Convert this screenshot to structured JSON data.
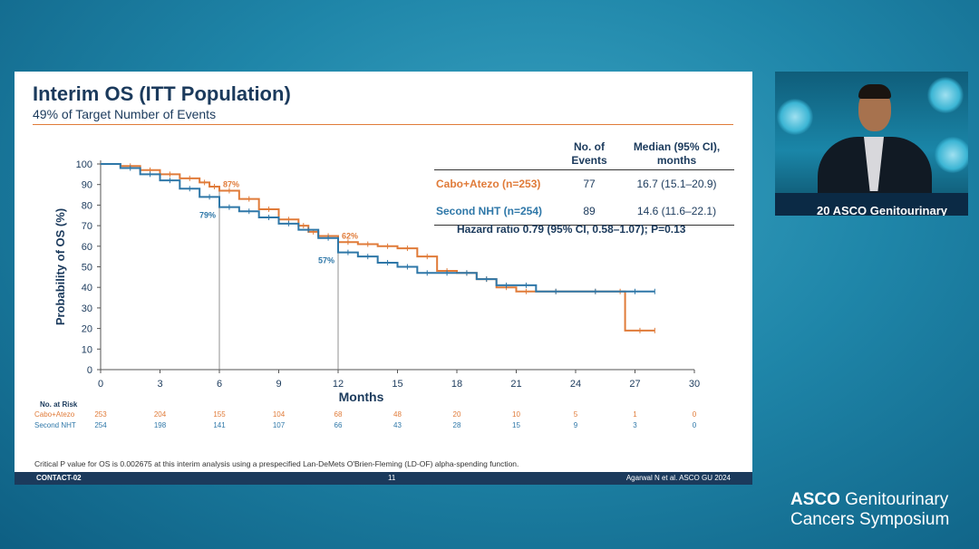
{
  "slide": {
    "title": "Interim OS (ITT Population)",
    "subtitle": "49% of Target Number of Events",
    "footnote": "Critical P value for OS is 0.002675 at this interim analysis using a prespecified Lan-DeMets O'Brien-Fleming (LD-OF) alpha-spending function.",
    "footer": {
      "trial": "CONTACT-02",
      "page": "11",
      "citation": "Agarwal N et al. ASCO GU 2024"
    }
  },
  "stats_table": {
    "headers": [
      "",
      "No. of Events",
      "Median (95% CI), months"
    ],
    "rows": [
      {
        "arm": "Cabo+Atezo (n=253)",
        "events": "77",
        "median": "16.7 (15.1–20.9)"
      },
      {
        "arm": "Second NHT (n=254)",
        "events": "89",
        "median": "14.6 (11.6–22.1)"
      }
    ],
    "hazard": "Hazard ratio 0.79 (95% CI, 0.58–1.07); P=0.13"
  },
  "at_risk": {
    "title": "No. at Risk",
    "rows": [
      {
        "label": "Cabo+Atezo",
        "values": [
          253,
          204,
          155,
          104,
          68,
          48,
          20,
          10,
          5,
          1,
          0
        ]
      },
      {
        "label": "Second NHT",
        "values": [
          254,
          198,
          141,
          107,
          66,
          43,
          28,
          15,
          9,
          3,
          0
        ]
      }
    ]
  },
  "chart_data": {
    "type": "line",
    "step": true,
    "xlabel": "Months",
    "ylabel": "Probability of OS (%)",
    "xlim": [
      0,
      30
    ],
    "ylim": [
      0,
      100
    ],
    "xticks": [
      0,
      3,
      6,
      9,
      12,
      15,
      18,
      21,
      24,
      27,
      30
    ],
    "yticks": [
      0,
      10,
      20,
      30,
      40,
      50,
      60,
      70,
      80,
      90,
      100
    ],
    "grid": false,
    "series": [
      {
        "name": "Cabo+Atezo",
        "color": "#e07b39",
        "x": [
          0,
          1,
          2,
          3,
          4,
          5,
          5.5,
          6,
          7,
          8,
          9,
          10,
          10.5,
          11,
          12,
          13,
          14,
          15,
          16,
          17,
          18,
          19,
          20,
          21,
          22,
          24,
          26,
          26.5,
          28
        ],
        "y": [
          100,
          99,
          97,
          95,
          93,
          91,
          89,
          87,
          83,
          78,
          73,
          70,
          67,
          65,
          62,
          61,
          60,
          59,
          55,
          48,
          47,
          44,
          40,
          38,
          38,
          38,
          38,
          19,
          19
        ]
      },
      {
        "name": "Second NHT",
        "color": "#2e77a8",
        "x": [
          0,
          1,
          2,
          3,
          4,
          5,
          6,
          7,
          8,
          9,
          10,
          11,
          12,
          13,
          14,
          15,
          16,
          17,
          18,
          19,
          20,
          21,
          22,
          24,
          26,
          28
        ],
        "y": [
          100,
          98,
          95,
          92,
          88,
          84,
          79,
          77,
          74,
          71,
          68,
          64,
          57,
          55,
          52,
          50,
          47,
          47,
          47,
          44,
          41,
          41,
          38,
          38,
          38,
          38
        ]
      }
    ],
    "annotations": [
      {
        "label": "87%",
        "series": "Cabo+Atezo",
        "x": 6,
        "y": 87
      },
      {
        "label": "79%",
        "series": "Second NHT",
        "x": 6,
        "y": 79
      },
      {
        "label": "62%",
        "series": "Cabo+Atezo",
        "x": 12,
        "y": 62
      },
      {
        "label": "57%",
        "series": "Second NHT",
        "x": 12,
        "y": 57
      }
    ]
  },
  "video": {
    "podium_text": "20 ASCO Genitourinary"
  },
  "brand": {
    "line1_bold": "ASCO",
    "line1_rest": " Genitourinary",
    "line2": "Cancers Symposium"
  }
}
